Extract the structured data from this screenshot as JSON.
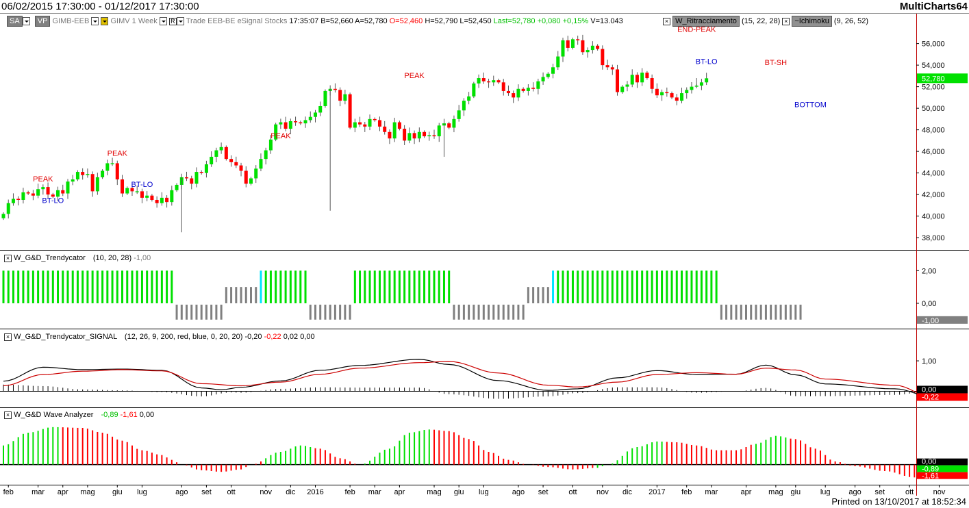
{
  "title_bar": {
    "range": "06/02/2015 17:30:00 - 01/12/2017 17:30:00",
    "app": "MultiCharts64"
  },
  "toolbar": {
    "sa": "SA",
    "vp": "VP",
    "symbol": "GIMB-EEB",
    "symbol2": "GIMV",
    "period": "1 Week",
    "mode": "Trade",
    "exchange": "EEB-BE",
    "feed": "eSignal",
    "category": "Stocks",
    "time": "17:35:07",
    "bid": "B=52,660",
    "ask": "A=52,780",
    "open": "O=52,460",
    "high": "H=52,790",
    "low": "L=52,450",
    "last": "Last=52,780",
    "change": "+0,080",
    "change_pct": "+0,15%",
    "volume": "V=13.043",
    "study1_name": "W_Ritracciamento",
    "study1_params": "(15,  22,  28)",
    "study2_name": "~Ichimoku",
    "study2_params": "(9,  26,  52)"
  },
  "footer": {
    "printed": "Printed on 13/10/2017 at 18:52:34"
  },
  "colors": {
    "up": "#00e000",
    "down": "#ff0000",
    "black": "#000000",
    "gray": "#808080",
    "cyan": "#00e5ff",
    "signal_red": "#cc0000"
  },
  "chart_data": [
    {
      "type": "candlestick",
      "panel": "price",
      "ylim": [
        37500,
        57500
      ],
      "yticks": [
        38000,
        40000,
        42000,
        44000,
        46000,
        48000,
        50000,
        52000,
        54000,
        56000
      ],
      "ytick_labels": [
        "38,000",
        "40,000",
        "42,000",
        "44,000",
        "46,000",
        "48,000",
        "50,000",
        "52,000",
        "54,000",
        "56,000"
      ],
      "last_label": "52,780",
      "last_value": 52780,
      "close": [
        40200,
        41200,
        41600,
        41500,
        42200,
        42100,
        41900,
        42500,
        42700,
        42000,
        41800,
        42400,
        42100,
        43200,
        43400,
        44100,
        43800,
        43900,
        42300,
        43600,
        44200,
        44900,
        44900,
        43400,
        42100,
        42600,
        42300,
        42300,
        41700,
        41900,
        41500,
        41200,
        41700,
        41300,
        42400,
        42900,
        43600,
        43500,
        43000,
        44100,
        44000,
        44800,
        45500,
        46100,
        46400,
        45300,
        45000,
        44700,
        44200,
        43000,
        43500,
        44400,
        45300,
        46100,
        47100,
        48500,
        48700,
        48100,
        48800,
        48700,
        48600,
        48900,
        49200,
        49600,
        50200,
        51600,
        51800,
        51700,
        50700,
        51300,
        48200,
        48700,
        48500,
        48300,
        49000,
        48900,
        48300,
        47800,
        47200,
        48700,
        48100,
        47000,
        47700,
        47200,
        47800,
        47400,
        47500,
        47400,
        48400,
        48600,
        48200,
        49000,
        49800,
        50700,
        51100,
        52300,
        52800,
        52500,
        52400,
        52600,
        52400,
        51600,
        51400,
        51000,
        51800,
        51600,
        51900,
        51800,
        52500,
        52900,
        53200,
        53800,
        54800,
        56300,
        55600,
        56400,
        56300,
        55200,
        55400,
        55800,
        55500,
        54000,
        53800,
        53600,
        51500,
        52000,
        52200,
        53100,
        52400,
        53300,
        52800,
        51800,
        51200,
        51500,
        51400,
        51000,
        50700,
        51400,
        51700,
        52000,
        52100,
        52400,
        52780
      ],
      "annotations": [
        {
          "label": "PEAK",
          "x": 8,
          "value": 43200,
          "color": "#e00000"
        },
        {
          "label": "BT-LO",
          "x": 10,
          "value": 41200,
          "color": "#0000cc"
        },
        {
          "label": "PEAK",
          "x": 23,
          "value": 45600,
          "color": "#e00000"
        },
        {
          "label": "BT-LO",
          "x": 28,
          "value": 42700,
          "color": "#0000cc"
        },
        {
          "label": "PEAK",
          "x": 56,
          "value": 47200,
          "color": "#e00000"
        },
        {
          "label": "PEAK",
          "x": 83,
          "value": 52800,
          "color": "#e00000"
        },
        {
          "label": "END-PEAK",
          "x": 140,
          "value": 57100,
          "color": "#e00000"
        },
        {
          "label": "BT-LO",
          "x": 142,
          "value": 54100,
          "color": "#0000cc"
        },
        {
          "label": "BT-SH",
          "x": 156,
          "value": 54000,
          "color": "#e00000"
        },
        {
          "label": "BOTTOM",
          "x": 163,
          "value": 50100,
          "color": "#0000cc"
        }
      ]
    },
    {
      "type": "bar",
      "panel": "trendycator",
      "title": "W_G&D_Trendycator",
      "params": "(10,  20,  28)",
      "value_label": "-1,00",
      "ylim": [
        -1.3,
        2.6
      ],
      "yticks": [
        0,
        2
      ],
      "ytick_labels": [
        "0,00",
        "2,00"
      ],
      "last_label": "-1,00",
      "segments": [
        {
          "count": 35,
          "value": 2,
          "color": "green"
        },
        {
          "count": 10,
          "value": -1,
          "color": "gray"
        },
        {
          "count": 7,
          "value": 1,
          "color": "gray"
        },
        {
          "count": 1,
          "value": 2,
          "color": "cyan"
        },
        {
          "count": 9,
          "value": 2,
          "color": "green"
        },
        {
          "count": 9,
          "value": -1,
          "color": "gray"
        },
        {
          "count": 20,
          "value": 2,
          "color": "green"
        },
        {
          "count": 15,
          "value": -1,
          "color": "gray"
        },
        {
          "count": 5,
          "value": 1,
          "color": "gray"
        },
        {
          "count": 1,
          "value": 2,
          "color": "cyan"
        },
        {
          "count": 33,
          "value": 2,
          "color": "green"
        },
        {
          "count": 17,
          "value": -1,
          "color": "gray"
        }
      ]
    },
    {
      "type": "line",
      "panel": "signal",
      "title": "W_G&D_Trendycator_SIGNAL",
      "params": "(12,  26,  9,  200,  red,  blue,  0,  20,  20)",
      "values_label": [
        "-0,20",
        "-0,22",
        "0,02",
        "0,00"
      ],
      "ylim": [
        -0.35,
        1.7
      ],
      "yticks": [
        1
      ],
      "ytick_labels": [
        "1,00"
      ],
      "last_labels": [
        "0,00",
        "-0,22"
      ],
      "series": [
        {
          "name": "",
          "color": "black",
          "anchors": [
            [
              0,
              0.33
            ],
            [
              8,
              0.79
            ],
            [
              16,
              0.71
            ],
            [
              24,
              0.73
            ],
            [
              32,
              0.69
            ],
            [
              40,
              0.11
            ],
            [
              44,
              0.05
            ],
            [
              48,
              0.13
            ],
            [
              56,
              0.34
            ],
            [
              64,
              0.69
            ],
            [
              72,
              0.85
            ],
            [
              84,
              1.05
            ],
            [
              90,
              0.88
            ],
            [
              100,
              0.35
            ],
            [
              110,
              0.03
            ],
            [
              116,
              0.08
            ],
            [
              124,
              0.44
            ],
            [
              132,
              0.68
            ],
            [
              140,
              0.55
            ],
            [
              148,
              0.56
            ],
            [
              154,
              0.86
            ],
            [
              160,
              0.54
            ],
            [
              166,
              0.24
            ],
            [
              180,
              0.08
            ],
            [
              188,
              -0.2
            ]
          ]
        },
        {
          "name": "",
          "color": "red",
          "anchors": [
            [
              0,
              0.18
            ],
            [
              8,
              0.55
            ],
            [
              16,
              0.66
            ],
            [
              24,
              0.71
            ],
            [
              32,
              0.67
            ],
            [
              40,
              0.25
            ],
            [
              48,
              0.18
            ],
            [
              56,
              0.3
            ],
            [
              64,
              0.56
            ],
            [
              72,
              0.76
            ],
            [
              84,
              0.94
            ],
            [
              90,
              0.98
            ],
            [
              100,
              0.6
            ],
            [
              110,
              0.2
            ],
            [
              116,
              0.14
            ],
            [
              124,
              0.3
            ],
            [
              132,
              0.55
            ],
            [
              140,
              0.61
            ],
            [
              148,
              0.56
            ],
            [
              154,
              0.76
            ],
            [
              160,
              0.7
            ],
            [
              166,
              0.4
            ],
            [
              180,
              0.2
            ],
            [
              188,
              -0.22
            ]
          ]
        }
      ],
      "hist_anchors": [
        [
          0,
          0.22
        ],
        [
          8,
          0.17
        ],
        [
          16,
          0.06
        ],
        [
          24,
          0.03
        ],
        [
          32,
          -0.03
        ],
        [
          40,
          -0.17
        ],
        [
          46,
          -0.04
        ],
        [
          48,
          -0.05
        ],
        [
          56,
          0.08
        ],
        [
          64,
          0.13
        ],
        [
          72,
          0.12
        ],
        [
          84,
          0.12
        ],
        [
          90,
          -0.1
        ],
        [
          100,
          -0.25
        ],
        [
          110,
          -0.17
        ],
        [
          116,
          -0.06
        ],
        [
          124,
          0.13
        ],
        [
          132,
          0.13
        ],
        [
          140,
          -0.05
        ],
        [
          148,
          0.0
        ],
        [
          154,
          0.11
        ],
        [
          160,
          -0.16
        ],
        [
          166,
          -0.16
        ],
        [
          180,
          -0.12
        ],
        [
          188,
          0.02
        ]
      ]
    },
    {
      "type": "bar",
      "panel": "wave",
      "title": "W_G&D Wave Analyzer",
      "values_label": [
        "-0,89",
        "-1,61",
        "0,00"
      ],
      "ylim": [
        -1.0,
        2.9
      ],
      "last_labels": [
        "0,00",
        "-0,89",
        "-1,61"
      ],
      "anchors": [
        [
          0,
          1.2
        ],
        [
          5,
          2.0
        ],
        [
          10,
          2.35
        ],
        [
          16,
          2.3
        ],
        [
          20,
          2.0
        ],
        [
          24,
          1.5
        ],
        [
          28,
          0.9
        ],
        [
          32,
          0.6
        ],
        [
          34,
          0.3
        ],
        [
          36,
          0.0
        ],
        [
          40,
          -0.35
        ],
        [
          44,
          -0.45
        ],
        [
          48,
          -0.3
        ],
        [
          50,
          0.0
        ],
        [
          56,
          0.8
        ],
        [
          60,
          1.2
        ],
        [
          64,
          1.0
        ],
        [
          68,
          0.4
        ],
        [
          72,
          0.0
        ],
        [
          78,
          1.0
        ],
        [
          82,
          2.0
        ],
        [
          86,
          2.2
        ],
        [
          90,
          2.1
        ],
        [
          94,
          1.6
        ],
        [
          98,
          0.8
        ],
        [
          102,
          0.3
        ],
        [
          106,
          0.0
        ],
        [
          110,
          -0.15
        ],
        [
          115,
          -0.3
        ],
        [
          120,
          -0.2
        ],
        [
          122,
          0.0
        ],
        [
          128,
          1.1
        ],
        [
          132,
          1.45
        ],
        [
          136,
          1.4
        ],
        [
          140,
          1.2
        ],
        [
          144,
          0.9
        ],
        [
          148,
          0.9
        ],
        [
          152,
          1.3
        ],
        [
          156,
          1.8
        ],
        [
          160,
          1.6
        ],
        [
          164,
          1.0
        ],
        [
          168,
          0.2
        ],
        [
          172,
          -0.1
        ],
        [
          178,
          -0.4
        ],
        [
          184,
          -0.8
        ],
        [
          188,
          -0.5
        ]
      ],
      "colors_by_range": [
        {
          "from": 0,
          "to": 11,
          "color": "green"
        },
        {
          "from": 12,
          "to": 35,
          "color": "red"
        },
        {
          "from": 36,
          "to": 52,
          "color": "red"
        },
        {
          "from": 53,
          "to": 62,
          "color": "green"
        },
        {
          "from": 63,
          "to": 71,
          "color": "red"
        },
        {
          "from": 72,
          "to": 86,
          "color": "green"
        },
        {
          "from": 87,
          "to": 107,
          "color": "red"
        },
        {
          "from": 108,
          "to": 119,
          "color": "red"
        },
        {
          "from": 120,
          "to": 124,
          "color": "green"
        },
        {
          "from": 125,
          "to": 133,
          "color": "green"
        },
        {
          "from": 134,
          "to": 151,
          "color": "red"
        },
        {
          "from": 152,
          "to": 158,
          "color": "green"
        },
        {
          "from": 159,
          "to": 170,
          "color": "red"
        },
        {
          "from": 171,
          "to": 185,
          "color": "red"
        },
        {
          "from": 186,
          "to": 189,
          "color": "green"
        }
      ]
    }
  ],
  "x_axis": {
    "labels": [
      {
        "text": "feb",
        "i": 1
      },
      {
        "text": "mar",
        "i": 7
      },
      {
        "text": "apr",
        "i": 12
      },
      {
        "text": "mag",
        "i": 17
      },
      {
        "text": "giu",
        "i": 23
      },
      {
        "text": "lug",
        "i": 28
      },
      {
        "text": "ago",
        "i": 36
      },
      {
        "text": "set",
        "i": 41
      },
      {
        "text": "ott",
        "i": 46
      },
      {
        "text": "nov",
        "i": 53
      },
      {
        "text": "dic",
        "i": 58
      },
      {
        "text": "2016",
        "i": 63
      },
      {
        "text": "feb",
        "i": 70
      },
      {
        "text": "mar",
        "i": 75
      },
      {
        "text": "apr",
        "i": 80
      },
      {
        "text": "mag",
        "i": 87
      },
      {
        "text": "giu",
        "i": 92
      },
      {
        "text": "lug",
        "i": 97
      },
      {
        "text": "ago",
        "i": 104
      },
      {
        "text": "set",
        "i": 109
      },
      {
        "text": "ott",
        "i": 115
      },
      {
        "text": "nov",
        "i": 121
      },
      {
        "text": "dic",
        "i": 126
      },
      {
        "text": "2017",
        "i": 132
      },
      {
        "text": "feb",
        "i": 138
      },
      {
        "text": "mar",
        "i": 143
      },
      {
        "text": "apr",
        "i": 150
      },
      {
        "text": "mag",
        "i": 156
      },
      {
        "text": "giu",
        "i": 160
      },
      {
        "text": "lug",
        "i": 166
      },
      {
        "text": "ago",
        "i": 172
      },
      {
        "text": "set",
        "i": 177
      },
      {
        "text": "ott",
        "i": 183
      },
      {
        "text": "nov",
        "i": 189
      }
    ]
  }
}
